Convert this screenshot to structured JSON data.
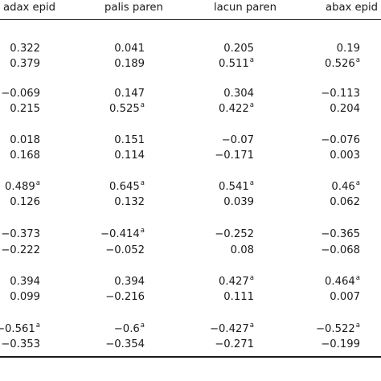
{
  "table": {
    "headers": [
      "adax epid",
      "palis paren",
      "lacun paren",
      "abax epid"
    ],
    "rows": [
      [
        "0.322",
        "0.041",
        "0.205",
        "0.19"
      ],
      [
        "0.379",
        "0.189",
        "0.511",
        "0.526"
      ],
      [
        "−0.069",
        "0.147",
        "0.304",
        "−0.113"
      ],
      [
        "0.215",
        "0.525",
        "0.422",
        "0.204"
      ],
      [
        "0.018",
        "0.151",
        "−0.07",
        "−0.076"
      ],
      [
        "0.168",
        "0.114",
        "−0.171",
        "0.003"
      ],
      [
        "0.489",
        "0.645",
        "0.541",
        "0.46"
      ],
      [
        "0.126",
        "0.132",
        "0.039",
        "0.062"
      ],
      [
        "−0.373",
        "−0.414",
        "−0.252",
        "−0.365"
      ],
      [
        "−0.222",
        "−0.052",
        "0.08",
        "−0.068"
      ],
      [
        "0.394",
        "0.394",
        "0.427",
        "0.464"
      ],
      [
        "0.099",
        "−0.216",
        "0.111",
        "0.007"
      ],
      [
        "−0.561",
        "−0.6",
        "−0.427",
        "−0.522"
      ],
      [
        "−0.353",
        "−0.354",
        "−0.271",
        "−0.199"
      ]
    ],
    "superscripts": [
      [
        null,
        null,
        null,
        null
      ],
      [
        null,
        null,
        "a",
        "a"
      ],
      [
        null,
        null,
        null,
        null
      ],
      [
        null,
        "a",
        "a",
        null
      ],
      [
        null,
        null,
        null,
        null
      ],
      [
        null,
        null,
        null,
        null
      ],
      [
        "a",
        "a",
        "a",
        "a"
      ],
      [
        null,
        null,
        null,
        null
      ],
      [
        null,
        "a",
        null,
        null
      ],
      [
        null,
        null,
        null,
        null
      ],
      [
        null,
        null,
        "a",
        "a"
      ],
      [
        null,
        null,
        null,
        null
      ],
      [
        "a",
        "a",
        "a",
        "a"
      ],
      [
        null,
        null,
        null,
        null
      ]
    ]
  }
}
